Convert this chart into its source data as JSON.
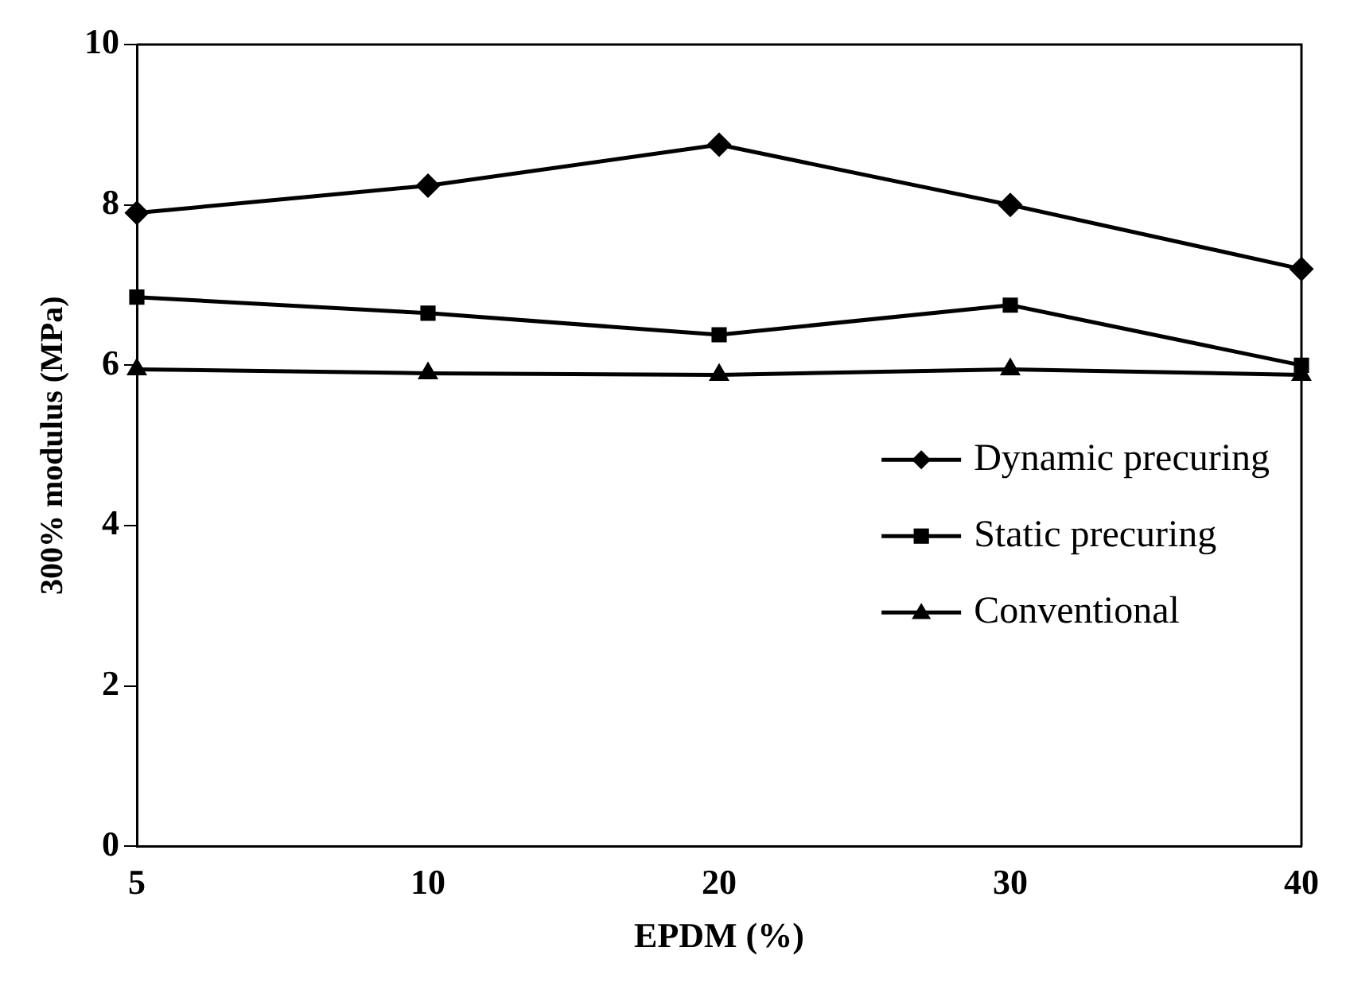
{
  "chart_data": {
    "type": "line",
    "xlabel": "EPDM (%)",
    "ylabel": "300% modulus (MPa)",
    "categories": [
      "5",
      "10",
      "20",
      "30",
      "40"
    ],
    "series": [
      {
        "name": "Dynamic precuring",
        "color": "#000000",
        "marker": "diamond",
        "values": [
          7.9,
          8.24,
          8.75,
          8.0,
          7.2
        ]
      },
      {
        "name": "Static precuring",
        "color": "#000000",
        "marker": "square",
        "values": [
          6.85,
          6.65,
          6.38,
          6.75,
          6.0
        ]
      },
      {
        "name": "Conventional",
        "color": "#000000",
        "marker": "triangle",
        "values": [
          5.95,
          5.9,
          5.88,
          5.95,
          5.88
        ]
      }
    ],
    "ylim": [
      0,
      10
    ],
    "yticks": [
      0,
      2,
      4,
      6,
      8,
      10
    ],
    "grid": false,
    "legend": "right",
    "line_style": "solid"
  }
}
